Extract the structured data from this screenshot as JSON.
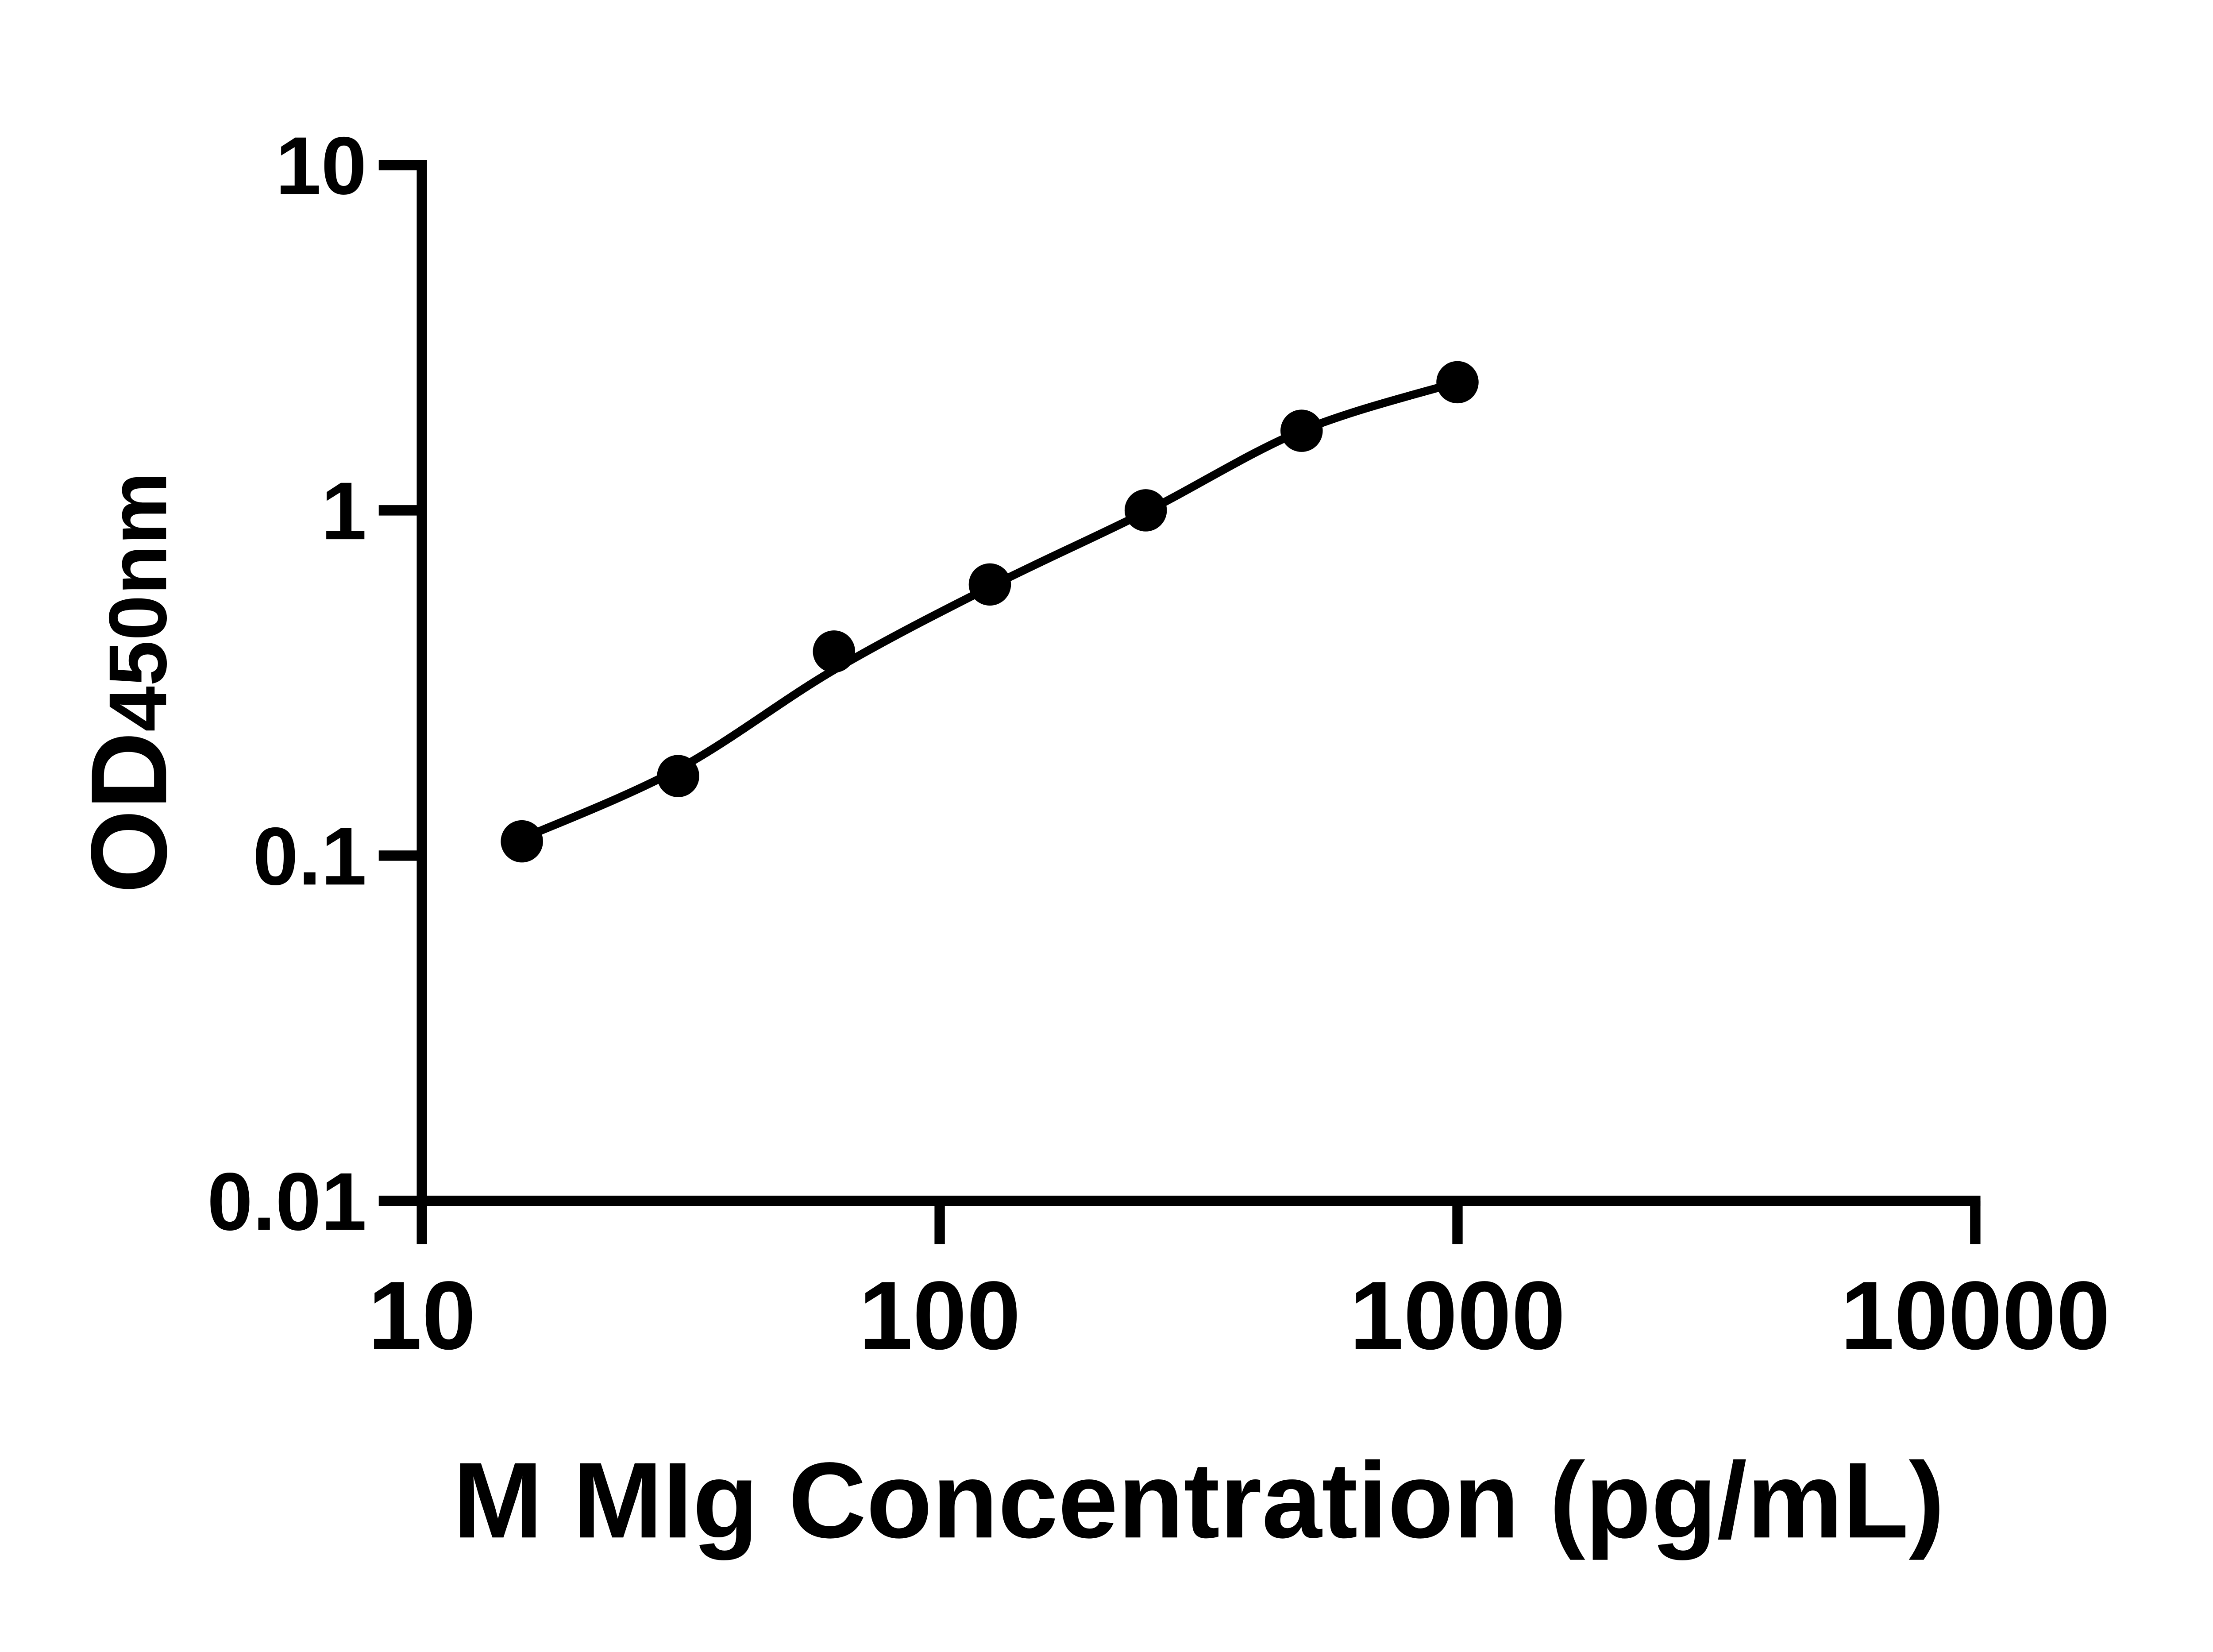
{
  "figure": {
    "background": "#ffffff",
    "ink": "#000000"
  },
  "chart_data": {
    "type": "scatter",
    "title": "",
    "xlabel": "M MIg Concentration (pg/mL)",
    "ylabel": {
      "base": "OD",
      "sub": "450nm"
    },
    "x_scale": "log",
    "y_scale": "log",
    "xlim": [
      10,
      10000
    ],
    "ylim": [
      0.01,
      10
    ],
    "x_ticks": [
      "10",
      "100",
      "1000",
      "10000"
    ],
    "y_ticks": [
      "10",
      "1",
      "0.1",
      "0.01"
    ],
    "x_tick_values": [
      10,
      100,
      1000,
      10000
    ],
    "y_tick_values": [
      10,
      1,
      0.1,
      0.01
    ],
    "grid": false,
    "legend": null,
    "series": [
      {
        "marker": "filled-circle",
        "color": "#000000",
        "x": [
          15.6,
          31.25,
          62.5,
          125,
          250,
          500,
          1000
        ],
        "od": [
          0.11,
          0.17,
          0.39,
          0.61,
          1.0,
          1.7,
          2.35
        ],
        "fit_line": {
          "x": [
            15.6,
            31.25,
            62.5,
            125,
            250,
            500,
            1000
          ],
          "od": [
            0.112,
            0.178,
            0.345,
            0.6,
            0.99,
            1.7,
            2.35
          ]
        }
      }
    ]
  }
}
